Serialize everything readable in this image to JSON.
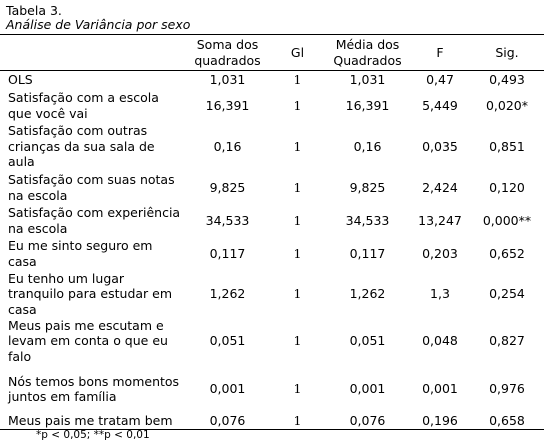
{
  "header": {
    "title": "Tabela 3.",
    "subtitle": "Análise de Variância por sexo"
  },
  "table": {
    "columns": [
      "",
      "Soma dos quadrados",
      "Gl",
      "Média dos Quadrados",
      "F",
      "Sig."
    ],
    "rows": [
      [
        "OLS",
        "1,031",
        "1",
        "1,031",
        "0,47",
        "0,493"
      ],
      [
        "Satisfação com a escola que você vai",
        "16,391",
        "1",
        "16,391",
        "5,449",
        "0,020*"
      ],
      [
        "Satisfação com outras crianças da sua sala de aula",
        "0,16",
        "1",
        "0,16",
        "0,035",
        "0,851"
      ],
      [
        "Satisfação com suas notas na escola",
        "9,825",
        "1",
        "9,825",
        "2,424",
        "0,120"
      ],
      [
        "Satisfação com experiência na escola",
        "34,533",
        "1",
        "34,533",
        "13,247",
        "0,000**"
      ],
      [
        "Eu me sinto seguro em casa",
        "0,117",
        "1",
        "0,117",
        "0,203",
        "0,652"
      ],
      [
        "Eu tenho um lugar tranquilo para estudar em casa",
        "1,262",
        "1",
        "1,262",
        "1,3",
        "0,254"
      ],
      [
        "Meus pais me escutam e levam em conta o que eu falo",
        "0,051",
        "1",
        "0,051",
        "0,048",
        "0,827"
      ],
      [
        "Nós temos bons momentos juntos em família",
        "0,001",
        "1",
        "0,001",
        "0,001",
        "0,976"
      ],
      [
        "Meus pais me tratam bem",
        "0,076",
        "1",
        "0,076",
        "0,196",
        "0,658"
      ]
    ]
  },
  "footnote": "*p < 0,05; **p < 0,01"
}
